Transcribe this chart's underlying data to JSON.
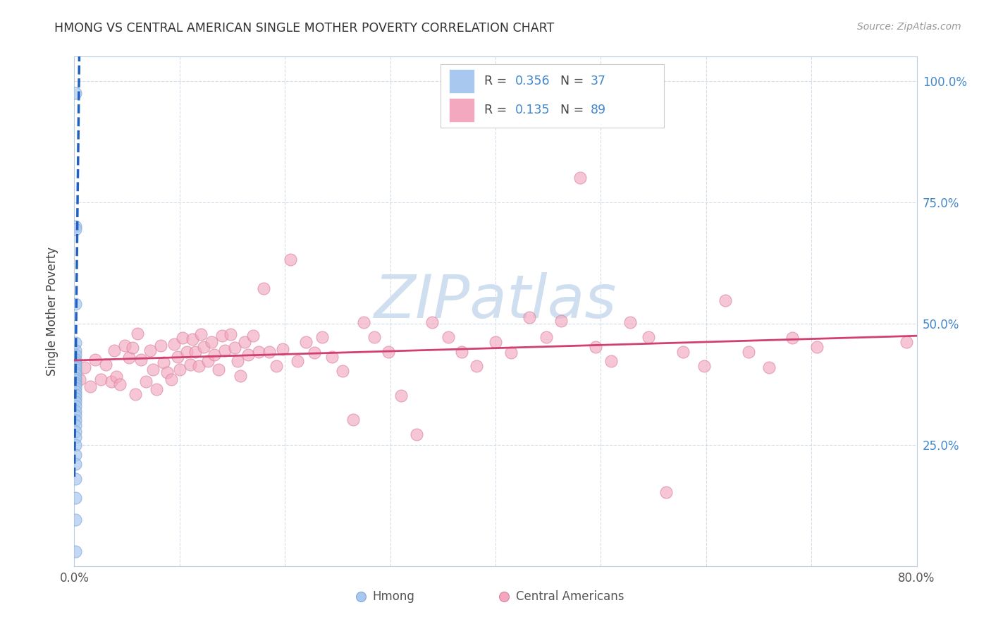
{
  "title": "HMONG VS CENTRAL AMERICAN SINGLE MOTHER POVERTY CORRELATION CHART",
  "source": "Source: ZipAtlas.com",
  "ylabel": "Single Mother Poverty",
  "hmong_R": 0.356,
  "hmong_N": 37,
  "central_R": 0.135,
  "central_N": 89,
  "hmong_color": "#a8c8f0",
  "hmong_edge_color": "#80a8d8",
  "hmong_line_color": "#2060c0",
  "central_color": "#f4a8c0",
  "central_edge_color": "#d88098",
  "central_line_color": "#d04070",
  "watermark_text": "ZIPatlas",
  "watermark_color": "#d0dff0",
  "background_color": "#ffffff",
  "xlim": [
    0.0,
    0.8
  ],
  "ylim": [
    0.0,
    1.05
  ],
  "hmong_x": [
    0.001,
    0.001,
    0.001,
    0.001,
    0.001,
    0.001,
    0.001,
    0.001,
    0.001,
    0.001,
    0.001,
    0.001,
    0.001,
    0.001,
    0.001,
    0.001,
    0.001,
    0.001,
    0.001,
    0.001,
    0.001,
    0.001,
    0.001,
    0.001,
    0.001,
    0.001,
    0.001,
    0.001,
    0.001,
    0.001,
    0.001,
    0.001,
    0.001,
    0.001,
    0.001,
    0.001,
    0.001
  ],
  "hmong_y": [
    0.975,
    0.7,
    0.695,
    0.54,
    0.46,
    0.445,
    0.435,
    0.425,
    0.42,
    0.415,
    0.41,
    0.405,
    0.4,
    0.395,
    0.388,
    0.383,
    0.378,
    0.373,
    0.368,
    0.36,
    0.353,
    0.345,
    0.338,
    0.33,
    0.32,
    0.31,
    0.3,
    0.29,
    0.278,
    0.265,
    0.25,
    0.23,
    0.21,
    0.18,
    0.14,
    0.095,
    0.03
  ],
  "central_x": [
    0.005,
    0.01,
    0.015,
    0.02,
    0.025,
    0.03,
    0.035,
    0.038,
    0.04,
    0.043,
    0.048,
    0.052,
    0.055,
    0.058,
    0.06,
    0.063,
    0.068,
    0.072,
    0.075,
    0.078,
    0.082,
    0.085,
    0.088,
    0.092,
    0.095,
    0.098,
    0.1,
    0.103,
    0.107,
    0.11,
    0.112,
    0.115,
    0.118,
    0.12,
    0.123,
    0.127,
    0.13,
    0.133,
    0.137,
    0.14,
    0.143,
    0.148,
    0.152,
    0.155,
    0.158,
    0.162,
    0.165,
    0.17,
    0.175,
    0.18,
    0.185,
    0.192,
    0.198,
    0.205,
    0.212,
    0.22,
    0.228,
    0.235,
    0.245,
    0.255,
    0.265,
    0.275,
    0.285,
    0.298,
    0.31,
    0.325,
    0.34,
    0.355,
    0.368,
    0.382,
    0.4,
    0.415,
    0.432,
    0.448,
    0.462,
    0.48,
    0.495,
    0.51,
    0.528,
    0.545,
    0.562,
    0.578,
    0.598,
    0.618,
    0.64,
    0.66,
    0.682,
    0.705,
    0.79
  ],
  "central_y": [
    0.385,
    0.41,
    0.37,
    0.425,
    0.385,
    0.415,
    0.38,
    0.445,
    0.39,
    0.375,
    0.455,
    0.43,
    0.45,
    0.355,
    0.48,
    0.425,
    0.38,
    0.445,
    0.405,
    0.365,
    0.455,
    0.42,
    0.4,
    0.385,
    0.458,
    0.432,
    0.405,
    0.47,
    0.442,
    0.415,
    0.468,
    0.442,
    0.412,
    0.478,
    0.452,
    0.422,
    0.462,
    0.435,
    0.405,
    0.475,
    0.445,
    0.478,
    0.45,
    0.422,
    0.392,
    0.462,
    0.435,
    0.475,
    0.442,
    0.572,
    0.442,
    0.412,
    0.448,
    0.632,
    0.422,
    0.462,
    0.44,
    0.472,
    0.432,
    0.402,
    0.302,
    0.502,
    0.472,
    0.442,
    0.352,
    0.272,
    0.502,
    0.472,
    0.442,
    0.412,
    0.462,
    0.44,
    0.512,
    0.472,
    0.505,
    0.8,
    0.452,
    0.422,
    0.502,
    0.472,
    0.152,
    0.442,
    0.412,
    0.548,
    0.442,
    0.41,
    0.47,
    0.452,
    0.462
  ]
}
